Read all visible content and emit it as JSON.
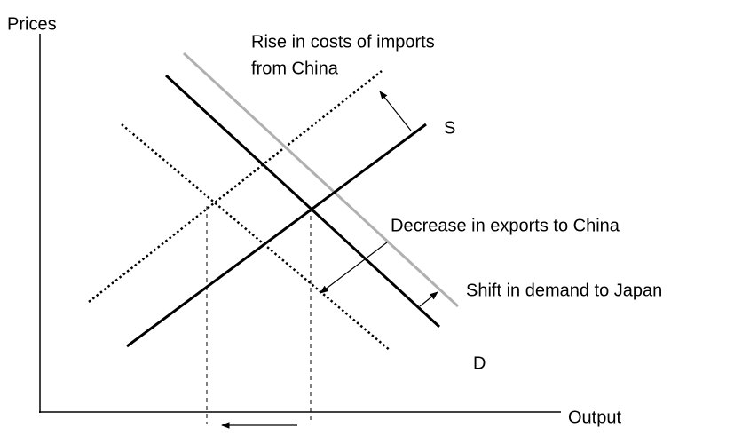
{
  "axes": {
    "y_label": "Prices",
    "x_label": "Output"
  },
  "curves": {
    "supply": "S",
    "demand": "D"
  },
  "annotations": {
    "supply_shift": [
      "Rise in costs of imports",
      "from China"
    ],
    "demand_shift_exports": "Decrease in exports to China",
    "demand_shift_japan": "Shift in demand to Japan"
  }
}
